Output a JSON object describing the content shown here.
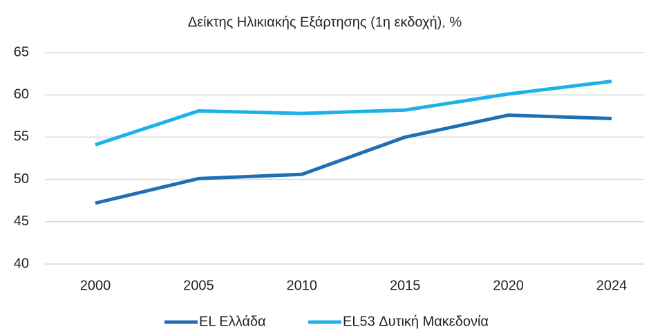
{
  "chart_data": {
    "type": "line",
    "title": "Δείκτης Ηλικιακής Εξάρτησης (1η εκδοχή), %",
    "categories": [
      "2000",
      "2005",
      "2010",
      "2015",
      "2020",
      "2024"
    ],
    "series": [
      {
        "name": "EL Ελλάδα",
        "color": "#1f6fb5",
        "values": [
          47.2,
          50.1,
          50.6,
          55.0,
          57.6,
          57.2
        ]
      },
      {
        "name": "EL53 Δυτική Μακεδονία",
        "color": "#1db1ea",
        "values": [
          54.1,
          58.1,
          57.8,
          58.2,
          60.1,
          61.6
        ]
      }
    ],
    "ylim": [
      40,
      65
    ],
    "yticks": [
      40,
      45,
      50,
      55,
      60,
      65
    ],
    "grid": true,
    "legend": "bottom"
  }
}
